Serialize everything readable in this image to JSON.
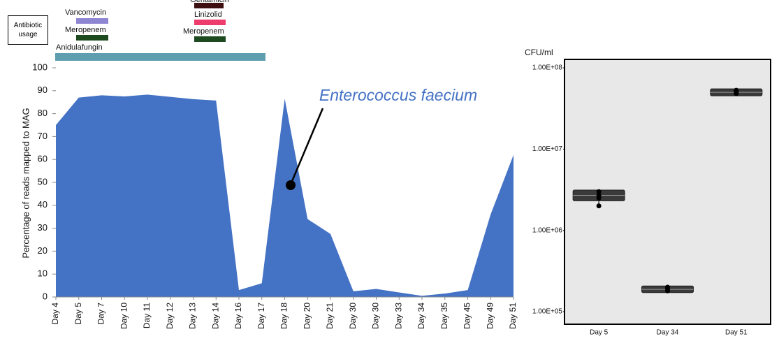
{
  "chart_data": [
    {
      "type": "area",
      "y_label": "Percentage of reads mapped to MAG",
      "annotation": "Enterococcus faecium",
      "antibiotic_title": "Antibiotic usage",
      "antibiotics": [
        {
          "name": "Vancomycin",
          "color": "#8f86d3"
        },
        {
          "name": "Meropenem",
          "color": "#1d4a1f"
        },
        {
          "name": "Anidulafungin",
          "color": "#5f9eb0"
        },
        {
          "name": "Gentamicin",
          "color": "#3d0f10"
        },
        {
          "name": "Linizolid",
          "color": "#ee3d6c"
        },
        {
          "name": "Meropenem",
          "color": "#1d4a1f"
        }
      ],
      "categories": [
        "Day 4",
        "Day 5",
        "Day 7",
        "Day 10",
        "Day 11",
        "Day 12",
        "Day 13",
        "Day 14",
        "Day 16",
        "Day 17",
        "Day 18",
        "Day 20",
        "Day 21",
        "Day 30",
        "Day 30",
        "Day 33",
        "Day 34",
        "Day 35",
        "Day 45",
        "Day 49",
        "Day 51"
      ],
      "values": [
        75,
        87,
        88,
        87.5,
        88.3,
        87.3,
        86.3,
        85.7,
        3,
        6,
        86.5,
        34,
        27.5,
        2.5,
        3.5,
        2,
        0.5,
        1.5,
        3,
        36,
        62
      ],
      "color": "#4472c4",
      "ylim": [
        0,
        100
      ],
      "yticks": [
        0,
        10,
        20,
        30,
        40,
        50,
        60,
        70,
        80,
        90,
        100
      ]
    },
    {
      "type": "box",
      "y_label": "CFU/ml",
      "log_scale": true,
      "background": "#e8e8e8",
      "color": "#3a3a3a",
      "categories": [
        "Day 5",
        "Day 34",
        "Day 51"
      ],
      "boxes": [
        {
          "min": 2000000,
          "q1": 2450000,
          "median": 2700000,
          "q3": 2950000,
          "max": 3050000,
          "points": [
            2000000,
            2500000,
            2700000,
            3000000
          ]
        },
        {
          "min": 180000,
          "q1": 182000,
          "median": 188000,
          "q3": 195000,
          "max": 200000,
          "points": [
            180000,
            190000,
            200000
          ]
        },
        {
          "min": 47000000,
          "q1": 48000000,
          "median": 50000000,
          "q3": 52000000,
          "max": 54000000,
          "points": [
            48000000,
            50000000,
            53000000
          ]
        }
      ],
      "ylim": [
        70000,
        127000000
      ],
      "yticks": [
        {
          "value": 100000,
          "label": "1.00E+05"
        },
        {
          "value": 1000000,
          "label": "1.00E+06"
        },
        {
          "value": 10000000,
          "label": "1.00E+07"
        },
        {
          "value": 100000000,
          "label": "1.00E+08"
        }
      ]
    }
  ]
}
